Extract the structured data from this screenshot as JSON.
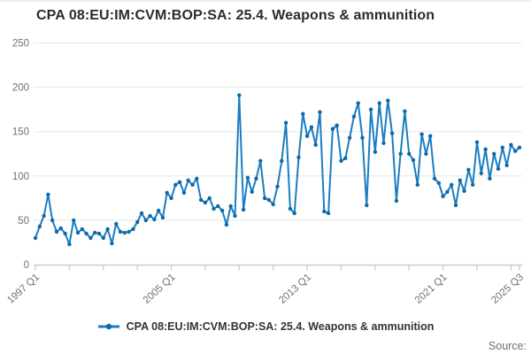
{
  "title": "CPA 08:EU:IM:CVM:BOP:SA: 25.4. Weapons & ammunition",
  "legend": {
    "label": "CPA 08:EU:IM:CVM:BOP:SA: 25.4. Weapons & ammunition"
  },
  "source_label": "Source:",
  "colors": {
    "line": "#1b7dc2",
    "marker": "#0f69a6",
    "grid": "#e6e6e6",
    "axis": "#c6ccda",
    "tick_label": "#707070",
    "title_text": "#2b2b2b",
    "legend_text": "#333333"
  },
  "chart_data": {
    "type": "line",
    "title": "CPA 08:EU:IM:CVM:BOP:SA: 25.4. Weapons & ammunition",
    "xlabel": "",
    "ylabel": "",
    "x_start": "1997 Q1",
    "x_end": "2025 Q3",
    "frequency": "quarterly",
    "ylim": [
      0,
      250
    ],
    "y_ticks": [
      0,
      50,
      100,
      150,
      200,
      250
    ],
    "x_tick_labels": [
      "1997 Q1",
      "2005 Q1",
      "2013 Q1",
      "2021 Q1",
      "2025 Q3"
    ],
    "x_tick_label_indices": [
      0,
      32,
      64,
      96,
      114
    ],
    "minor_tick_every_quarters": 8,
    "grid": "horizontal",
    "legend_position": "bottom",
    "values": [
      30,
      43,
      55,
      79,
      50,
      37,
      41,
      35,
      23,
      50,
      36,
      40,
      35,
      30,
      36,
      35,
      30,
      40,
      24,
      46,
      37,
      36,
      37,
      40,
      48,
      58,
      50,
      55,
      51,
      61,
      53,
      81,
      75,
      90,
      93,
      81,
      95,
      90,
      97,
      73,
      70,
      75,
      63,
      66,
      61,
      45,
      66,
      55,
      191,
      62,
      98,
      82,
      97,
      117,
      75,
      73,
      68,
      88,
      117,
      160,
      63,
      58,
      121,
      170,
      145,
      155,
      135,
      172,
      60,
      58,
      153,
      157,
      117,
      120,
      143,
      167,
      182,
      143,
      67,
      175,
      127,
      182,
      137,
      185,
      148,
      72,
      125,
      173,
      125,
      118,
      90,
      147,
      125,
      145,
      97,
      92,
      77,
      82,
      90,
      67,
      95,
      83,
      107,
      90,
      138,
      103,
      130,
      97,
      125,
      108,
      132,
      112,
      135,
      128,
      132
    ]
  }
}
